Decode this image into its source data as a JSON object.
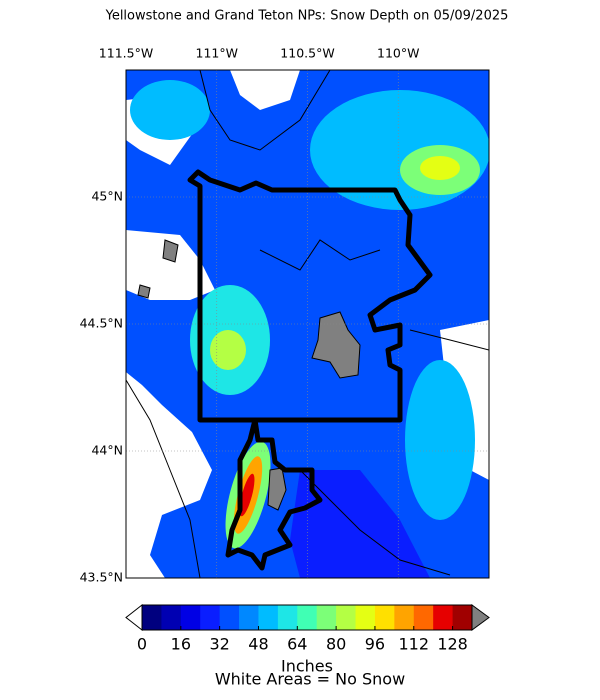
{
  "map": {
    "title": "Yellowstone and Grand Teton NPs: Snow Depth on 05/09/2025",
    "xlim": [
      -111.5,
      -109.5
    ],
    "ylim": [
      43.5,
      45.5
    ],
    "lon_ticks": [
      {
        "value": -111.5,
        "label": "111.5°W"
      },
      {
        "value": -111,
        "label": "111°W"
      },
      {
        "value": -110.5,
        "label": "110.5°W"
      },
      {
        "value": -110,
        "label": "110°W"
      }
    ],
    "lat_ticks": [
      {
        "value": 43.5,
        "label": "43.5°N"
      },
      {
        "value": 44,
        "label": "44°N"
      },
      {
        "value": 44.5,
        "label": "44.5°N"
      },
      {
        "value": 45,
        "label": "45°N"
      }
    ],
    "colorbar": {
      "range": [
        0,
        136
      ],
      "colors": [
        "#00007f",
        "#0000b2",
        "#0000e5",
        "#0a1eff",
        "#0050ff",
        "#0088ff",
        "#00bcff",
        "#1ee6e6",
        "#40ffb4",
        "#7cff78",
        "#b4ff44",
        "#e4ff14",
        "#ffe000",
        "#ffa400",
        "#ff6800",
        "#e60000",
        "#a00000"
      ],
      "under_color": "#ffffff",
      "over_color": "#808080",
      "ticks": [
        0,
        16,
        32,
        48,
        64,
        80,
        96,
        112,
        128
      ],
      "label": "Inches"
    },
    "note": "White Areas = No Snow"
  }
}
